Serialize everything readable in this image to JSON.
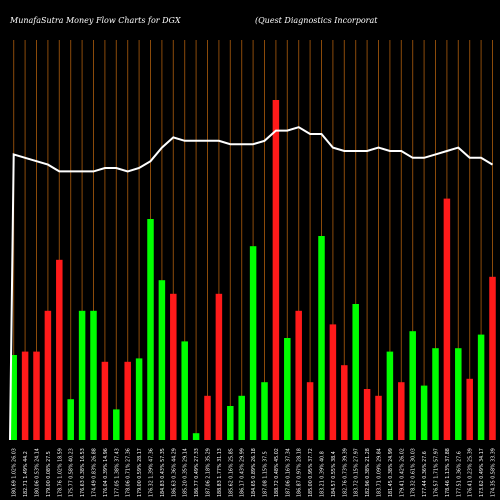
{
  "header": {
    "left": "MunafaSutra  Money Flow  Charts for DGX",
    "right": "(Quest Diagnostics Incorporat"
  },
  "colors": {
    "background": "#000000",
    "grid": "#8a4a0a",
    "positive": "#00ff00",
    "negative": "#ff1a1a",
    "line": "#ffffff",
    "label": "#ffffff"
  },
  "chart_data": {
    "type": "bar",
    "title": "MunafaSutra  Money Flow  Charts for DGX",
    "subtitle": "(Quest Diagnostics Incorporat",
    "ylim": [
      0,
      100
    ],
    "grid": "vertical",
    "categories": [
      "180.69 1.02% 26.03",
      "182.71 1.49% 44.2",
      "180.06 0.53% 24.14",
      "179.00 0.08% 27.5",
      "178.76 1.02% 18.59",
      "175.77 0.58% 40.23",
      "176.63 0.38% 16.53",
      "174.49 0.83% 26.88",
      "176.04 0.39% 14.96",
      "177.05 1.38% 37.43",
      "178.06 0.71% 27.36",
      "179.00 0.59% 28.17",
      "176.32 1.39% 47.36",
      "184.83 0.43% 57.35",
      "186.63 0.36% 44.29",
      "185.20 0.35% 29.14",
      "186.77 0.49% 27.33",
      "187.06 2.18% 35.29",
      "188.83 1.77% 31.13",
      "185.62 0.16% 25.85",
      "186.17 0.43% 29.99",
      "184.65 0.89% 26.18",
      "187.08 1.15% 37.5",
      "188.72 0.48% 45.02",
      "187.06 0.16% 37.34",
      "186.87 0.97% 28.18",
      "185.00 0.95% 37.72",
      "183.21 0.39% 40.8",
      "184.57 0.55% 38.4",
      "182.76 0.73% 39.39",
      "183.72 0.15% 27.97",
      "182.96 0.38% 21.28",
      "183.71 0.09% 29.84",
      "181.45 0.38% 24.99",
      "179.41 0.42% 26.02",
      "178.32 0.61% 30.03",
      "177.44 0.36% 27.6",
      "176.57 1.71% 57.97",
      "178.46 1.13% 37.88",
      "177.51 0.36% 27.6",
      "176.41 0.23% 25.39",
      "173.62 0.49% 34.17",
      "174.35 0.58% 33.39"
    ],
    "directions": [
      "up",
      "down",
      "down",
      "down",
      "down",
      "up",
      "up",
      "up",
      "down",
      "up",
      "down",
      "up",
      "up",
      "up",
      "down",
      "up",
      "up",
      "down",
      "down",
      "up",
      "up",
      "up",
      "up",
      "down",
      "up",
      "down",
      "down",
      "up",
      "down",
      "down",
      "up",
      "down",
      "down",
      "up",
      "down",
      "up",
      "up",
      "up",
      "down",
      "up",
      "down",
      "up",
      "down"
    ],
    "series": [
      {
        "values": [
          25,
          26,
          26,
          38,
          53,
          12,
          38,
          38,
          23,
          9,
          23,
          24,
          65,
          47,
          43,
          29,
          2,
          13,
          43,
          10,
          13,
          57,
          17,
          100,
          30,
          38,
          17,
          60,
          34,
          22,
          40,
          15,
          13,
          26,
          17,
          32,
          16,
          27,
          71,
          27,
          18,
          31,
          48
        ]
      },
      {
        "values": [
          84,
          83,
          82,
          81,
          79,
          79,
          79,
          79,
          80,
          80,
          79,
          80,
          82,
          86,
          89,
          88,
          88,
          88,
          88,
          87,
          87,
          87,
          88,
          91,
          91,
          92,
          90,
          90,
          86,
          85,
          85,
          85,
          86,
          85,
          85,
          83,
          83,
          84,
          85,
          86,
          83,
          83,
          81
        ]
      }
    ]
  }
}
